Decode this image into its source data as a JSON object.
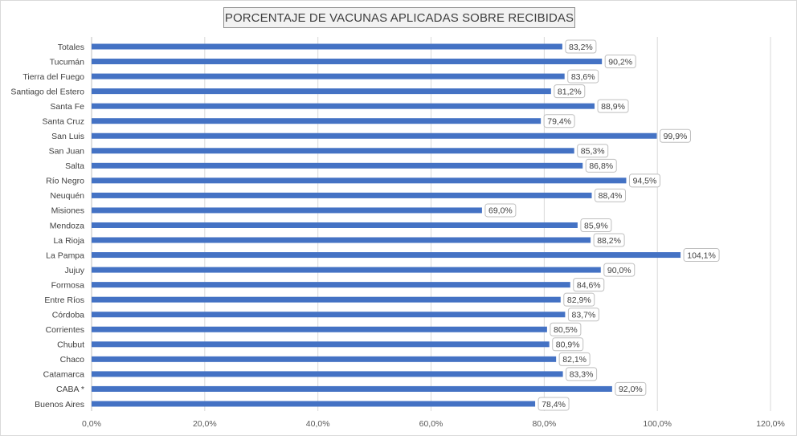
{
  "chart_data": {
    "type": "bar",
    "orientation": "horizontal",
    "title": "PORCENTAJE DE VACUNAS APLICADAS SOBRE RECIBIDAS",
    "categories": [
      "Totales",
      "Tucumán",
      "Tierra del Fuego",
      "Santiago del Estero",
      "Santa Fe",
      "Santa Cruz",
      "San Luis",
      "San Juan",
      "Salta",
      "Río Negro",
      "Neuquén",
      "Misiones",
      "Mendoza",
      "La Rioja",
      "La Pampa",
      "Jujuy",
      "Formosa",
      "Entre Ríos",
      "Córdoba",
      "Corrientes",
      "Chubut",
      "Chaco",
      "Catamarca",
      "CABA *",
      "Buenos Aires"
    ],
    "values": [
      83.2,
      90.2,
      83.6,
      81.2,
      88.9,
      79.4,
      99.9,
      85.3,
      86.8,
      94.5,
      88.4,
      69.0,
      85.9,
      88.2,
      104.1,
      90.0,
      84.6,
      82.9,
      83.7,
      80.5,
      80.9,
      82.1,
      83.3,
      92.0,
      78.4
    ],
    "data_labels": [
      "83,2%",
      "90,2%",
      "83,6%",
      "81,2%",
      "88,9%",
      "79,4%",
      "99,9%",
      "85,3%",
      "86,8%",
      "94,5%",
      "88,4%",
      "69,0%",
      "85,9%",
      "88,2%",
      "104,1%",
      "90,0%",
      "84,6%",
      "82,9%",
      "83,7%",
      "80,5%",
      "80,9%",
      "82,1%",
      "83,3%",
      "92,0%",
      "78,4%"
    ],
    "x_ticks": [
      0,
      20,
      40,
      60,
      80,
      100,
      120
    ],
    "x_tick_labels": [
      "0,0%",
      "20,0%",
      "40,0%",
      "60,0%",
      "80,0%",
      "100,0%",
      "120,0%"
    ],
    "xlim": [
      0,
      120
    ],
    "grid": true,
    "bar_color": "#4472C4",
    "grid_color": "#d9d9d9",
    "xlabel": "",
    "ylabel": ""
  }
}
